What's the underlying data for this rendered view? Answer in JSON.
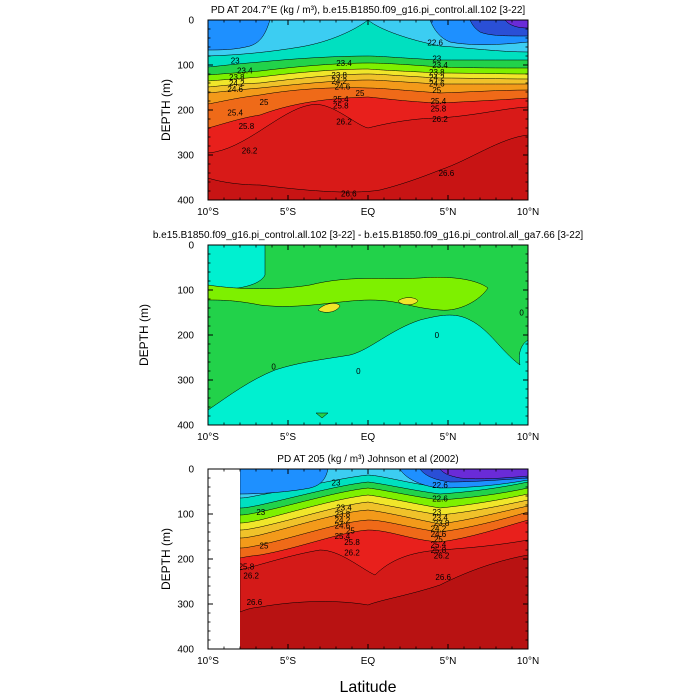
{
  "figure": {
    "xlabel": "Latitude"
  },
  "colors": {
    "blue_dark": "#2a4fd6",
    "blue": "#1e90ff",
    "cyan": "#3ccdf2",
    "teal": "#00e0c0",
    "green": "#22d24a",
    "lime": "#7ef000",
    "yellow": "#f0e62a",
    "orange": "#f39a1a",
    "orange_red": "#ef6a18",
    "red": "#e8201c",
    "red_dark": "#c81414",
    "violet": "#6a2bd8"
  },
  "chart_data": [
    {
      "type": "contour",
      "title": "PD AT 204.7°E (kg / m³), b.e15.B1850.f09_g16.pi_control.all.102 [3-22]",
      "xlabel": "",
      "ylabel": "DEPTH (m)",
      "xlim": [
        -10,
        10
      ],
      "ylim": [
        400,
        0
      ],
      "xticks": [
        -10,
        -5,
        0,
        5,
        10
      ],
      "xtick_labels": [
        "10°S",
        "5°S",
        "EQ",
        "5°N",
        "10°N"
      ],
      "yticks": [
        0,
        100,
        200,
        300,
        400
      ],
      "ytick_labels": [
        "0",
        "100",
        "200",
        "300",
        "400"
      ],
      "contour_labels": [
        {
          "text": "23",
          "x": -8.3,
          "y": 90
        },
        {
          "text": "23.4",
          "x": -1.5,
          "y": 95
        },
        {
          "text": "23.4",
          "x": 4.5,
          "y": 100
        },
        {
          "text": "22.6",
          "x": 4.2,
          "y": 50
        },
        {
          "text": "23",
          "x": 4.3,
          "y": 85
        },
        {
          "text": "23.4",
          "x": -7.7,
          "y": 112
        },
        {
          "text": "23.8",
          "x": -8.2,
          "y": 127
        },
        {
          "text": "24.2",
          "x": -8.2,
          "y": 140
        },
        {
          "text": "24.6",
          "x": -8.3,
          "y": 153
        },
        {
          "text": "23.8",
          "x": -1.8,
          "y": 122
        },
        {
          "text": "24.2",
          "x": -1.8,
          "y": 135
        },
        {
          "text": "24.6",
          "x": -1.6,
          "y": 148
        },
        {
          "text": "25",
          "x": -0.5,
          "y": 162
        },
        {
          "text": "25.4",
          "x": -1.7,
          "y": 175
        },
        {
          "text": "25.8",
          "x": -1.7,
          "y": 190
        },
        {
          "text": "23.8",
          "x": 4.3,
          "y": 115
        },
        {
          "text": "24.2",
          "x": 4.3,
          "y": 128
        },
        {
          "text": "24.6",
          "x": 4.3,
          "y": 141
        },
        {
          "text": "25",
          "x": 4.3,
          "y": 155
        },
        {
          "text": "25.4",
          "x": 4.4,
          "y": 180
        },
        {
          "text": "25.8",
          "x": 4.4,
          "y": 197
        },
        {
          "text": "25",
          "x": -6.5,
          "y": 182
        },
        {
          "text": "25.4",
          "x": -8.3,
          "y": 205
        },
        {
          "text": "25.8",
          "x": -7.6,
          "y": 235
        },
        {
          "text": "26.2",
          "x": -1.5,
          "y": 225
        },
        {
          "text": "26.2",
          "x": 4.5,
          "y": 220
        },
        {
          "text": "26.2",
          "x": -7.4,
          "y": 290
        },
        {
          "text": "26.6",
          "x": 4.9,
          "y": 340
        },
        {
          "text": "26.6",
          "x": -1.2,
          "y": 385
        }
      ]
    },
    {
      "type": "contour",
      "title": "b.e15.B1850.f09_g16.pi_control.all.102 [3-22] - b.e15.B1850.f09_g16.pi_control.all_ga7.66 [3-22]",
      "xlabel": "",
      "ylabel": "DEPTH (m)",
      "xlim": [
        -10,
        10
      ],
      "ylim": [
        400,
        0
      ],
      "xticks": [
        -10,
        -5,
        0,
        5,
        10
      ],
      "xtick_labels": [
        "10°S",
        "5°S",
        "EQ",
        "5°N",
        "10°N"
      ],
      "yticks": [
        0,
        100,
        200,
        300,
        400
      ],
      "ytick_labels": [
        "0",
        "100",
        "200",
        "300",
        "400"
      ],
      "contour_labels": [
        {
          "text": "0",
          "x": 9.6,
          "y": 150
        },
        {
          "text": "0",
          "x": 4.3,
          "y": 200
        },
        {
          "text": "0",
          "x": -5.9,
          "y": 270
        },
        {
          "text": "0",
          "x": -0.6,
          "y": 280
        }
      ]
    },
    {
      "type": "contour",
      "title": "PD AT 205 (kg / m³) Johnson et al (2002)",
      "xlabel": "Latitude",
      "ylabel": "DEPTH (m)",
      "xlim": [
        -10,
        10
      ],
      "ylim": [
        400,
        0
      ],
      "xticks": [
        -10,
        -5,
        0,
        5,
        10
      ],
      "xtick_labels": [
        "10°S",
        "5°S",
        "EQ",
        "5°N",
        "10°N"
      ],
      "yticks": [
        0,
        100,
        200,
        300,
        400
      ],
      "ytick_labels": [
        "0",
        "100",
        "200",
        "300",
        "400"
      ],
      "data_xlim": [
        -8,
        10
      ],
      "contour_labels": [
        {
          "text": "23",
          "x": -2.0,
          "y": 30
        },
        {
          "text": "22.6",
          "x": 4.5,
          "y": 35
        },
        {
          "text": "22.6",
          "x": 4.5,
          "y": 65
        },
        {
          "text": "23",
          "x": 4.3,
          "y": 95
        },
        {
          "text": "23",
          "x": -6.7,
          "y": 95
        },
        {
          "text": "23.4",
          "x": -1.5,
          "y": 85
        },
        {
          "text": "23.8",
          "x": -1.6,
          "y": 100
        },
        {
          "text": "24.2",
          "x": -1.6,
          "y": 113
        },
        {
          "text": "24.6",
          "x": -1.6,
          "y": 126
        },
        {
          "text": "25",
          "x": -1.1,
          "y": 137
        },
        {
          "text": "25.4",
          "x": -1.6,
          "y": 149
        },
        {
          "text": "25.8",
          "x": -1.0,
          "y": 162
        },
        {
          "text": "26.2",
          "x": -1.0,
          "y": 185
        },
        {
          "text": "23.4",
          "x": 4.5,
          "y": 108
        },
        {
          "text": "23.8",
          "x": 4.6,
          "y": 120
        },
        {
          "text": "24.2",
          "x": 4.4,
          "y": 132
        },
        {
          "text": "24.6",
          "x": 4.4,
          "y": 144
        },
        {
          "text": "25",
          "x": 4.4,
          "y": 156
        },
        {
          "text": "25.4",
          "x": 4.4,
          "y": 168
        },
        {
          "text": "25.8",
          "x": 4.4,
          "y": 180
        },
        {
          "text": "26.2",
          "x": 4.6,
          "y": 192
        },
        {
          "text": "25",
          "x": -6.5,
          "y": 170
        },
        {
          "text": "25.8",
          "x": -7.6,
          "y": 217
        },
        {
          "text": "26.2",
          "x": -7.3,
          "y": 237
        },
        {
          "text": "26.6",
          "x": 4.7,
          "y": 240
        },
        {
          "text": "26.6",
          "x": -7.1,
          "y": 295
        }
      ]
    }
  ]
}
